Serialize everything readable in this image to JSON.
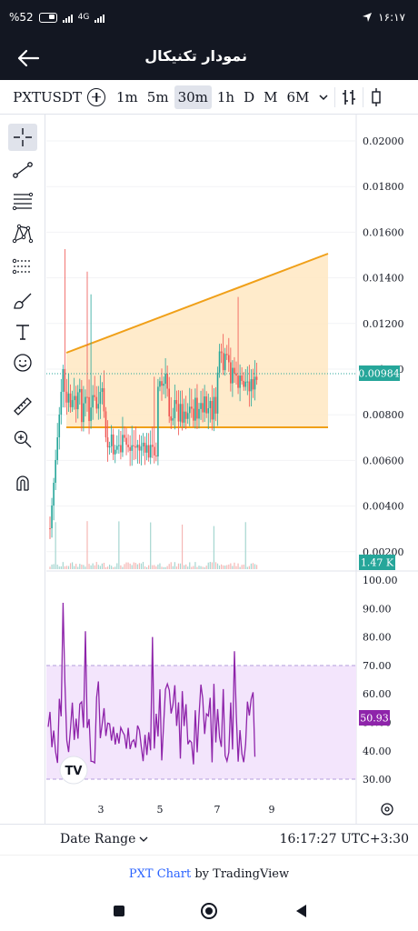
{
  "status": {
    "battery": "%52",
    "network": "4G",
    "time": "۱۶:۱۷"
  },
  "appbar": {
    "title": "نمودار تکنیکال",
    "back_icon": "arrow-left-icon"
  },
  "toolbar": {
    "symbol": "PXTUSDT",
    "timeframes": [
      "1m",
      "5m",
      "30m",
      "1h",
      "D",
      "M",
      "6M"
    ],
    "active_timeframe": "30m"
  },
  "chart": {
    "price_axis": [
      "0.02000",
      "0.01800",
      "0.01600",
      "0.01400",
      "0.01200",
      "0.01000",
      "0.00800",
      "0.00600",
      "0.00400",
      "0.00200"
    ],
    "last_price": "0.00984",
    "volume_label": "1.47 K",
    "rsi_axis": [
      "100.00",
      "90.00",
      "80.00",
      "70.00",
      "60.00",
      "50.00",
      "40.00",
      "30.00"
    ],
    "rsi_value": "50.93",
    "time_axis": [
      "3",
      "5",
      "7",
      "9"
    ],
    "colors": {
      "up": "#26a69a",
      "down": "#ef5350",
      "trendline": "#f0a019",
      "rsi": "#8e24aa",
      "rsi_band": "#f3e5fc"
    }
  },
  "bottombar": {
    "date_range": "Date Range",
    "clock": "16:17:27 UTC+3:30"
  },
  "attribution": {
    "brand": "PXT Chart",
    "by": " by TradingView"
  }
}
